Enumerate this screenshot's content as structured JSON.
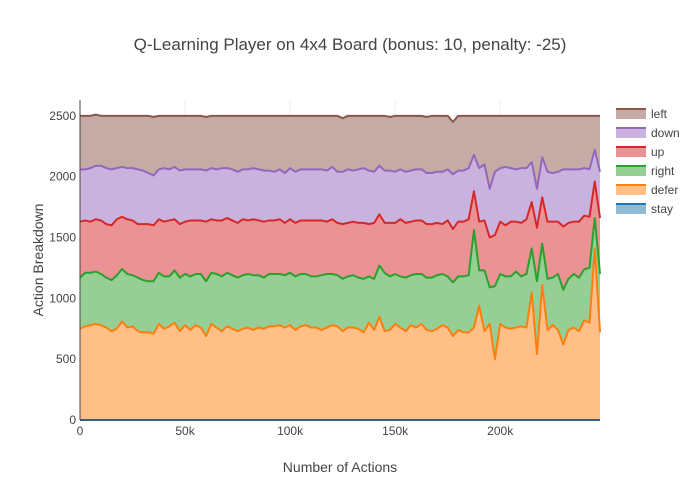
{
  "chart_data": {
    "type": "area",
    "stacked": true,
    "title": "Q-Learning Player on 4x4 Board (bonus: 10, penalty: -25)",
    "xlabel": "Number of Actions",
    "ylabel": "Action Breakdown",
    "xlim": [
      0,
      247500
    ],
    "ylim": [
      0,
      2630
    ],
    "x_ticks": [
      0,
      50000,
      100000,
      150000,
      200000
    ],
    "x_tick_labels": [
      "0",
      "50k",
      "100k",
      "150k",
      "200k"
    ],
    "y_ticks": [
      0,
      500,
      1000,
      1500,
      2000,
      2500
    ],
    "y_tick_labels": [
      "0",
      "500",
      "1000",
      "1500",
      "2000",
      "2500"
    ],
    "grid": true,
    "legend_position": "top-right",
    "x": [
      0,
      2500,
      5000,
      7500,
      10000,
      12500,
      15000,
      17500,
      20000,
      22500,
      25000,
      27500,
      30000,
      32500,
      35000,
      37500,
      40000,
      42500,
      45000,
      47500,
      50000,
      52500,
      55000,
      57500,
      60000,
      62500,
      65000,
      67500,
      70000,
      72500,
      75000,
      77500,
      80000,
      82500,
      85000,
      87500,
      90000,
      92500,
      95000,
      97500,
      100000,
      102500,
      105000,
      107500,
      110000,
      112500,
      115000,
      117500,
      120000,
      122500,
      125000,
      127500,
      130000,
      132500,
      135000,
      137500,
      140000,
      142500,
      145000,
      147500,
      150000,
      152500,
      155000,
      157500,
      160000,
      162500,
      165000,
      167500,
      170000,
      172500,
      175000,
      177500,
      180000,
      182500,
      185000,
      187500,
      190000,
      192500,
      195000,
      197500,
      200000,
      202500,
      205000,
      207500,
      210000,
      212500,
      215000,
      217500,
      220000,
      222500,
      225000,
      227500,
      230000,
      232500,
      235000,
      237500,
      240000,
      242500,
      245000,
      247500
    ],
    "series": [
      {
        "name": "stay",
        "color": "#1f77b4",
        "fill": "#8fbbd9",
        "values": [
          0,
          0,
          0,
          0,
          0,
          0,
          0,
          0,
          0,
          0,
          0,
          0,
          0,
          0,
          0,
          0,
          0,
          0,
          0,
          0,
          0,
          0,
          0,
          0,
          0,
          0,
          0,
          0,
          0,
          0,
          0,
          0,
          0,
          0,
          0,
          0,
          0,
          0,
          0,
          0,
          0,
          0,
          0,
          0,
          0,
          0,
          0,
          0,
          0,
          0,
          0,
          0,
          0,
          0,
          0,
          0,
          0,
          0,
          0,
          0,
          0,
          0,
          0,
          0,
          0,
          0,
          0,
          0,
          0,
          0,
          0,
          0,
          0,
          0,
          0,
          0,
          0,
          0,
          0,
          0,
          0,
          0,
          0,
          0,
          0,
          0,
          0,
          0,
          0,
          0,
          0,
          0,
          0,
          0,
          0,
          0,
          0,
          0,
          0,
          0
        ]
      },
      {
        "name": "defer",
        "color": "#ff7f0e",
        "fill": "#ffbf87",
        "values": [
          750,
          770,
          780,
          790,
          780,
          760,
          730,
          750,
          810,
          760,
          770,
          730,
          720,
          720,
          710,
          790,
          750,
          770,
          800,
          730,
          780,
          740,
          780,
          760,
          690,
          790,
          760,
          730,
          770,
          750,
          730,
          750,
          760,
          740,
          760,
          750,
          770,
          770,
          780,
          760,
          780,
          740,
          770,
          780,
          760,
          760,
          740,
          760,
          780,
          770,
          730,
          760,
          760,
          750,
          720,
          800,
          740,
          850,
          730,
          740,
          790,
          760,
          730,
          780,
          760,
          790,
          740,
          730,
          750,
          780,
          760,
          690,
          740,
          720,
          720,
          760,
          940,
          730,
          790,
          500,
          790,
          760,
          750,
          760,
          770,
          760,
          1050,
          540,
          1110,
          740,
          780,
          740,
          620,
          740,
          760,
          730,
          820,
          800,
          1410,
          720
        ]
      },
      {
        "name": "right",
        "color": "#2ca02c",
        "fill": "#95cf95",
        "values": [
          420,
          440,
          430,
          430,
          420,
          410,
          420,
          440,
          430,
          440,
          420,
          440,
          430,
          420,
          430,
          420,
          430,
          410,
          430,
          440,
          420,
          440,
          420,
          440,
          450,
          420,
          440,
          450,
          440,
          440,
          440,
          440,
          440,
          450,
          430,
          420,
          430,
          430,
          420,
          430,
          430,
          440,
          430,
          420,
          420,
          420,
          450,
          440,
          420,
          420,
          430,
          420,
          430,
          420,
          440,
          380,
          420,
          420,
          480,
          440,
          410,
          420,
          440,
          410,
          440,
          410,
          430,
          440,
          440,
          420,
          420,
          440,
          440,
          460,
          470,
          800,
          290,
          500,
          300,
          600,
          410,
          420,
          430,
          460,
          410,
          440,
          360,
          600,
          340,
          420,
          390,
          460,
          450,
          420,
          440,
          440,
          420,
          450,
          250,
          480
        ]
      },
      {
        "name": "up",
        "color": "#d62728",
        "fill": "#eb9394",
        "values": [
          460,
          430,
          420,
          430,
          440,
          440,
          450,
          460,
          430,
          450,
          450,
          440,
          460,
          470,
          460,
          440,
          450,
          460,
          420,
          440,
          430,
          460,
          440,
          440,
          490,
          440,
          440,
          460,
          450,
          450,
          450,
          460,
          440,
          460,
          450,
          460,
          440,
          440,
          450,
          430,
          440,
          440,
          440,
          440,
          460,
          460,
          450,
          430,
          450,
          430,
          450,
          440,
          440,
          450,
          460,
          430,
          460,
          420,
          410,
          440,
          420,
          470,
          450,
          440,
          440,
          440,
          440,
          440,
          430,
          410,
          460,
          440,
          450,
          450,
          460,
          320,
          400,
          410,
          410,
          420,
          430,
          420,
          450,
          410,
          440,
          450,
          380,
          440,
          380,
          470,
          460,
          430,
          520,
          460,
          430,
          460,
          440,
          420,
          300,
          460
        ]
      },
      {
        "name": "down",
        "color": "#9467bd",
        "fill": "#c9b3de",
        "values": [
          430,
          420,
          440,
          440,
          450,
          460,
          460,
          420,
          410,
          420,
          430,
          450,
          440,
          420,
          410,
          410,
          440,
          420,
          430,
          440,
          430,
          420,
          420,
          420,
          420,
          420,
          420,
          430,
          410,
          420,
          420,
          410,
          420,
          420,
          420,
          420,
          410,
          400,
          410,
          410,
          420,
          420,
          420,
          420,
          420,
          420,
          420,
          420,
          430,
          420,
          430,
          440,
          420,
          440,
          450,
          440,
          420,
          400,
          430,
          430,
          420,
          410,
          420,
          420,
          420,
          420,
          420,
          420,
          420,
          430,
          420,
          450,
          420,
          420,
          420,
          300,
          440,
          460,
          400,
          520,
          440,
          480,
          440,
          430,
          450,
          420,
          330,
          320,
          330,
          410,
          400,
          410,
          470,
          440,
          430,
          430,
          390,
          390,
          260,
          380
        ]
      },
      {
        "name": "left",
        "color": "#8c564b",
        "fill": "#c5aba5",
        "values": [
          440,
          440,
          430,
          420,
          410,
          430,
          440,
          430,
          420,
          430,
          430,
          440,
          450,
          470,
          480,
          440,
          430,
          440,
          420,
          450,
          440,
          440,
          440,
          440,
          440,
          430,
          440,
          430,
          430,
          440,
          460,
          440,
          440,
          430,
          440,
          450,
          450,
          460,
          440,
          470,
          430,
          460,
          440,
          440,
          440,
          440,
          440,
          450,
          420,
          460,
          440,
          440,
          450,
          440,
          430,
          450,
          460,
          410,
          450,
          440,
          460,
          440,
          460,
          450,
          440,
          440,
          460,
          470,
          460,
          460,
          440,
          430,
          450,
          450,
          430,
          320,
          430,
          400,
          600,
          460,
          430,
          420,
          430,
          440,
          430,
          430,
          380,
          600,
          340,
          460,
          470,
          460,
          440,
          440,
          440,
          440,
          430,
          440,
          280,
          460
        ]
      }
    ]
  }
}
